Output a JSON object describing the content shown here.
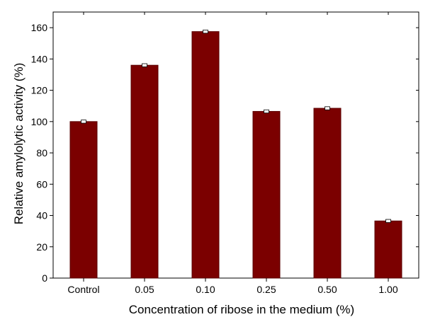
{
  "chart_data": {
    "type": "bar",
    "categories": [
      "Control",
      "0.05",
      "0.10",
      "0.25",
      "0.50",
      "1.00"
    ],
    "values": [
      100,
      136,
      157.5,
      106.5,
      108.5,
      36.5
    ],
    "error": [
      1,
      1,
      1,
      1,
      1,
      1
    ],
    "xlabel": "Concentration of ribose in the medium (%)",
    "ylabel": "Relative amylolytic activity (%)",
    "ylim": [
      0,
      170
    ],
    "yticks": [
      0,
      20,
      40,
      60,
      80,
      100,
      120,
      140,
      160
    ],
    "grid": false,
    "colors": {
      "bar": "#7b0000",
      "bar_edge": "#5a0000",
      "axis": "#000000"
    }
  }
}
